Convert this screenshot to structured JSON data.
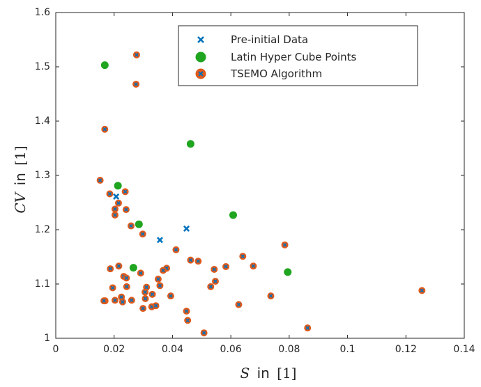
{
  "chart_data": {
    "type": "scatter",
    "xlabel": {
      "var": "S",
      "word": "in",
      "unit": "[1]"
    },
    "ylabel": {
      "var": "CV",
      "word": "in",
      "unit": "[1]"
    },
    "xlim": [
      0,
      0.14
    ],
    "ylim": [
      1,
      1.6
    ],
    "xticks": [
      0,
      0.02,
      0.04,
      0.06,
      0.08,
      0.1,
      0.12,
      0.14
    ],
    "xtick_labels": [
      "0",
      "0.02",
      "0.04",
      "0.06",
      "0.08",
      "0.1",
      "0.12",
      "0.14"
    ],
    "yticks": [
      1,
      1.1,
      1.2,
      1.3,
      1.4,
      1.5,
      1.6
    ],
    "ytick_labels": [
      "1",
      "1.1",
      "1.2",
      "1.3",
      "1.4",
      "1.5",
      "1.6"
    ],
    "grid": false,
    "legend_position": "top-right",
    "series": [
      {
        "name": "Pre-initial Data",
        "marker": "x",
        "color": "#0072BD",
        "points": [
          [
            0.0207,
            1.261
          ],
          [
            0.0357,
            1.181
          ],
          [
            0.0448,
            1.202
          ],
          [
            0.0494,
            1.487
          ]
        ]
      },
      {
        "name": "Latin Hyper Cube Points",
        "marker": "circle",
        "color": "#1FA51F",
        "points": [
          [
            0.0168,
            1.503
          ],
          [
            0.0462,
            1.358
          ],
          [
            0.0213,
            1.281
          ],
          [
            0.0608,
            1.227
          ],
          [
            0.0285,
            1.21
          ],
          [
            0.0266,
            1.13
          ],
          [
            0.0795,
            1.122
          ]
        ]
      },
      {
        "name": "TSEMO Algorithm",
        "marker": "circle-x",
        "color": "#E05A1B",
        "cross_color": "#0072BD",
        "points": [
          [
            0.0277,
            1.522
          ],
          [
            0.0275,
            1.468
          ],
          [
            0.0168,
            1.385
          ],
          [
            0.0152,
            1.291
          ],
          [
            0.0238,
            1.27
          ],
          [
            0.0185,
            1.266
          ],
          [
            0.0215,
            1.249
          ],
          [
            0.0203,
            1.238
          ],
          [
            0.0241,
            1.237
          ],
          [
            0.0203,
            1.227
          ],
          [
            0.0258,
            1.207
          ],
          [
            0.0298,
            1.192
          ],
          [
            0.0412,
            1.163
          ],
          [
            0.0785,
            1.172
          ],
          [
            0.0641,
            1.151
          ],
          [
            0.0462,
            1.144
          ],
          [
            0.0488,
            1.142
          ],
          [
            0.0583,
            1.132
          ],
          [
            0.0543,
            1.127
          ],
          [
            0.0677,
            1.133
          ],
          [
            0.0216,
            1.133
          ],
          [
            0.0187,
            1.128
          ],
          [
            0.038,
            1.129
          ],
          [
            0.0368,
            1.125
          ],
          [
            0.0291,
            1.12
          ],
          [
            0.0233,
            1.114
          ],
          [
            0.0242,
            1.111
          ],
          [
            0.0351,
            1.109
          ],
          [
            0.0547,
            1.105
          ],
          [
            0.0357,
            1.097
          ],
          [
            0.0311,
            1.094
          ],
          [
            0.0243,
            1.095
          ],
          [
            0.0195,
            1.093
          ],
          [
            0.0531,
            1.095
          ],
          [
            0.0306,
            1.085
          ],
          [
            0.0331,
            1.081
          ],
          [
            0.0394,
            1.078
          ],
          [
            0.0225,
            1.076
          ],
          [
            0.0307,
            1.073
          ],
          [
            0.0737,
            1.078
          ],
          [
            0.1255,
            1.088
          ],
          [
            0.0169,
            1.069
          ],
          [
            0.0165,
            1.069
          ],
          [
            0.0203,
            1.07
          ],
          [
            0.0229,
            1.067
          ],
          [
            0.026,
            1.07
          ],
          [
            0.0329,
            1.058
          ],
          [
            0.0343,
            1.06
          ],
          [
            0.0299,
            1.055
          ],
          [
            0.0627,
            1.062
          ],
          [
            0.0448,
            1.05
          ],
          [
            0.0452,
            1.033
          ],
          [
            0.0863,
            1.019
          ],
          [
            0.0508,
            1.01
          ]
        ]
      }
    ]
  }
}
